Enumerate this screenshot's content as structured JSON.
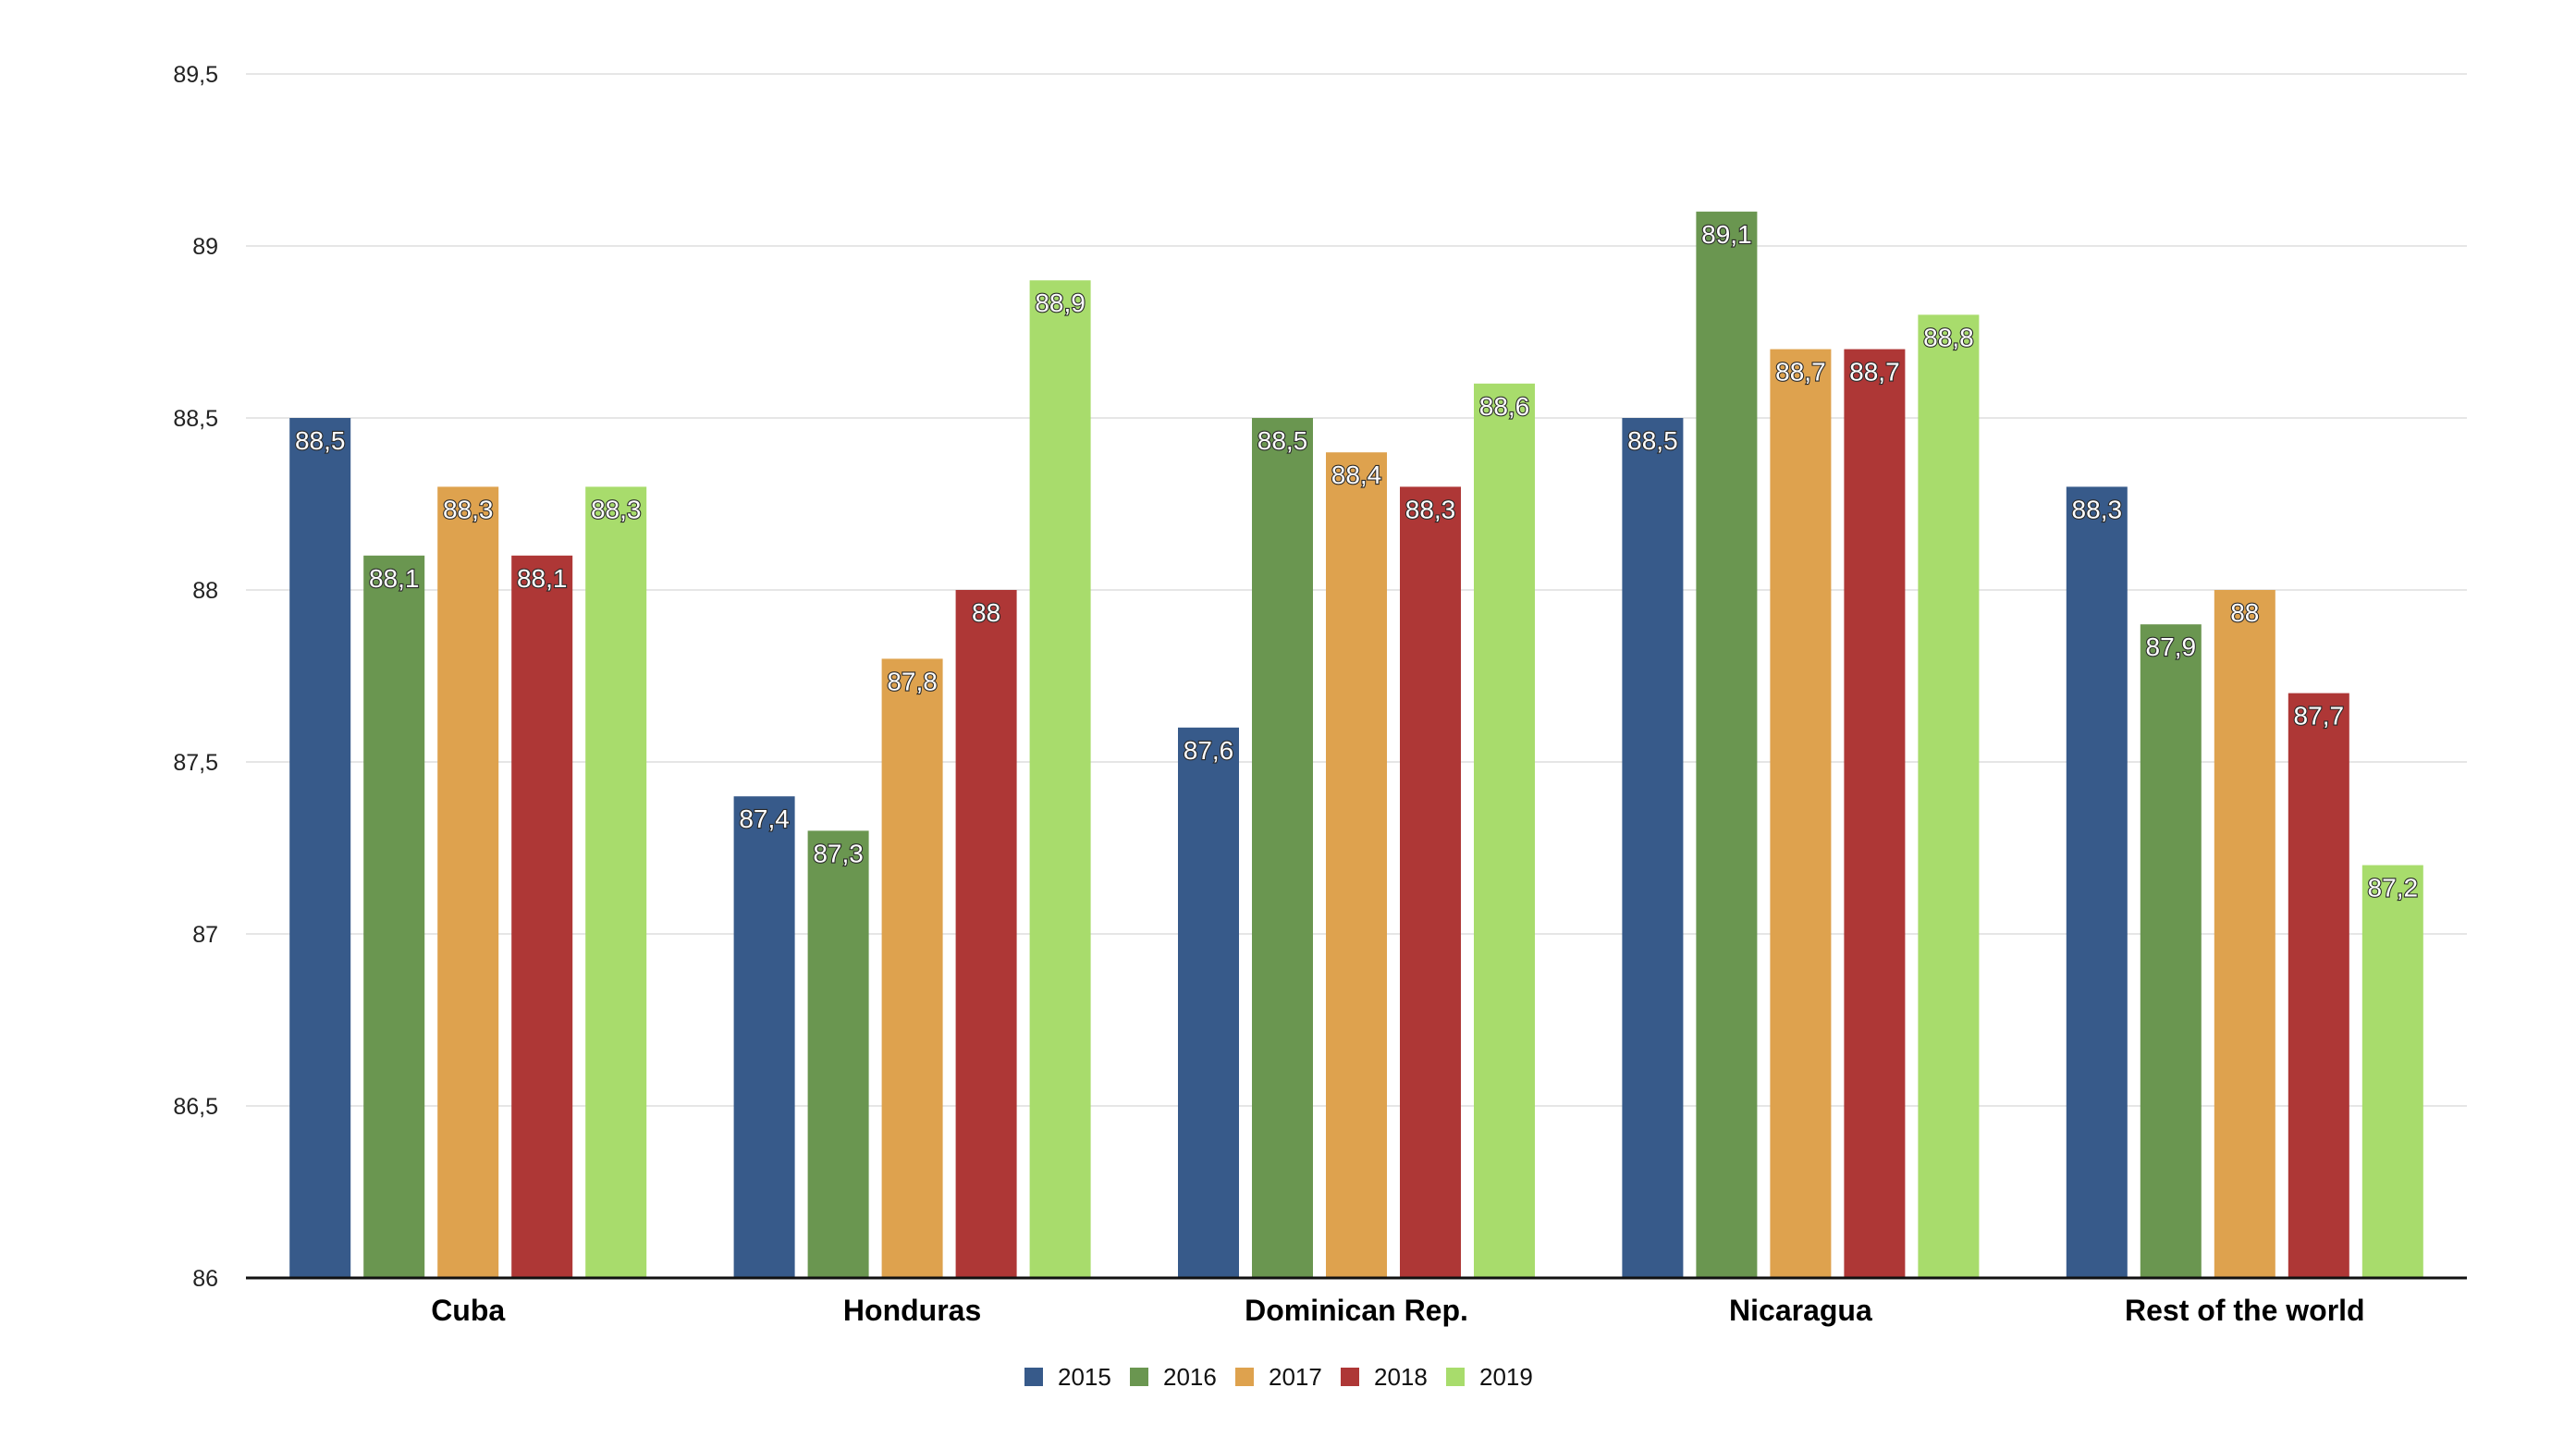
{
  "chart_data": {
    "type": "bar",
    "title": "",
    "xlabel": "",
    "ylabel": "",
    "categories": [
      "Cuba",
      "Honduras",
      "Dominican Rep.",
      "Nicaragua",
      "Rest of the world"
    ],
    "series": [
      {
        "name": "2015",
        "color": "#375a8a",
        "values": [
          88.5,
          87.4,
          87.6,
          88.5,
          88.3
        ],
        "labels": [
          "88,5",
          "87,4",
          "87,6",
          "88,5",
          "88,3"
        ]
      },
      {
        "name": "2016",
        "color": "#6a9650",
        "values": [
          88.1,
          87.3,
          88.5,
          89.1,
          87.9
        ],
        "labels": [
          "88,1",
          "87,3",
          "88,5",
          "89,1",
          "87,9"
        ]
      },
      {
        "name": "2017",
        "color": "#dea24e",
        "values": [
          88.3,
          87.8,
          88.4,
          88.7,
          88.0
        ],
        "labels": [
          "88,3",
          "87,8",
          "88,4",
          "88,7",
          "88"
        ]
      },
      {
        "name": "2018",
        "color": "#ae3736",
        "values": [
          88.1,
          88.0,
          88.3,
          88.7,
          87.7
        ],
        "labels": [
          "88,1",
          "88",
          "88,3",
          "88,7",
          "87,7"
        ]
      },
      {
        "name": "2019",
        "color": "#a8dc6c",
        "values": [
          88.3,
          88.9,
          88.6,
          88.8,
          87.2
        ],
        "labels": [
          "88,3",
          "88,9",
          "88,6",
          "88,8",
          "87,2"
        ]
      }
    ],
    "ylim": [
      86,
      89.5
    ],
    "yticks": [
      86,
      86.5,
      87,
      87.5,
      88,
      88.5,
      89,
      89.5
    ],
    "ytick_labels": [
      "86",
      "86,5",
      "87",
      "87,5",
      "88",
      "88,5",
      "89",
      "89,5"
    ],
    "grid": true,
    "legend": "bottom-center"
  }
}
